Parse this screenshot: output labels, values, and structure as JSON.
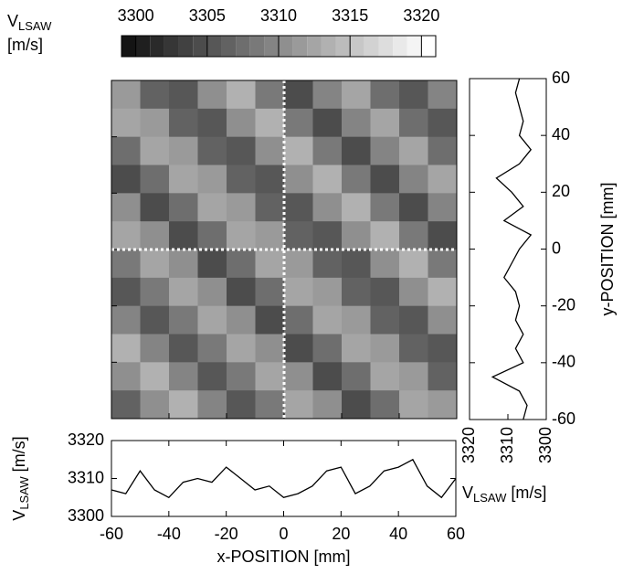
{
  "chart_data": [
    {
      "type": "colorbar",
      "label": "V",
      "label_sub": "LSAW",
      "label_unit": "[m/s]",
      "xlim": [
        3299,
        3321
      ],
      "xticks": [
        3300,
        3305,
        3310,
        3315,
        3320
      ],
      "levels": [
        3299,
        3300,
        3301,
        3302,
        3303,
        3304,
        3305,
        3306,
        3307,
        3308,
        3309,
        3310,
        3311,
        3312,
        3313,
        3314,
        3315,
        3316,
        3317,
        3318,
        3319,
        3320,
        3321
      ],
      "color_low": "#141414",
      "color_high": "#ffffff"
    },
    {
      "type": "heatmap",
      "x": [
        -55,
        -45,
        -35,
        -25,
        -15,
        -5,
        5,
        15,
        25,
        35,
        45,
        55
      ],
      "y": [
        55,
        45,
        35,
        25,
        15,
        5,
        -5,
        -15,
        -25,
        -35,
        -45,
        -55
      ],
      "values": [
        [
          3311,
          3306,
          3305,
          3310,
          3313,
          3308,
          3304,
          3309,
          3312,
          3307,
          3305,
          3309
        ],
        [
          3312,
          3311,
          3306,
          3305,
          3310,
          3313,
          3308,
          3304,
          3309,
          3312,
          3307,
          3305
        ],
        [
          3307,
          3312,
          3311,
          3306,
          3305,
          3310,
          3313,
          3308,
          3304,
          3309,
          3312,
          3307
        ],
        [
          3304,
          3307,
          3312,
          3311,
          3306,
          3305,
          3310,
          3313,
          3308,
          3304,
          3309,
          3312
        ],
        [
          3310,
          3304,
          3307,
          3312,
          3311,
          3306,
          3305,
          3310,
          3313,
          3308,
          3304,
          3309
        ],
        [
          3312,
          3310,
          3304,
          3307,
          3312,
          3311,
          3306,
          3305,
          3310,
          3313,
          3308,
          3304
        ],
        [
          3308,
          3312,
          3310,
          3304,
          3307,
          3312,
          3311,
          3306,
          3305,
          3310,
          3313,
          3308
        ],
        [
          3305,
          3308,
          3312,
          3310,
          3304,
          3307,
          3312,
          3311,
          3306,
          3305,
          3310,
          3313
        ],
        [
          3309,
          3305,
          3308,
          3312,
          3310,
          3304,
          3307,
          3312,
          3311,
          3306,
          3305,
          3310
        ],
        [
          3313,
          3309,
          3305,
          3308,
          3312,
          3310,
          3304,
          3307,
          3312,
          3311,
          3306,
          3305
        ],
        [
          3310,
          3313,
          3309,
          3305,
          3308,
          3312,
          3310,
          3304,
          3307,
          3312,
          3311,
          3306
        ],
        [
          3306,
          3310,
          3313,
          3309,
          3305,
          3308,
          3312,
          3310,
          3304,
          3307,
          3312,
          3311
        ]
      ],
      "xlim": [
        -60,
        60
      ],
      "ylim": [
        -60,
        60
      ],
      "xticks": [
        -40,
        -20,
        0,
        20,
        40
      ],
      "yticks": [
        -40,
        -20,
        0,
        20,
        40
      ],
      "crosshair_x": 0,
      "crosshair_y": 0
    },
    {
      "type": "vline",
      "y": [
        60,
        55,
        50,
        45,
        40,
        35,
        30,
        25,
        20,
        15,
        10,
        5,
        0,
        -5,
        -10,
        -15,
        -20,
        -25,
        -30,
        -35,
        -40,
        -45,
        -50,
        -55,
        -60
      ],
      "values": [
        3307,
        3308,
        3307,
        3306,
        3307,
        3304,
        3307,
        3313,
        3309,
        3306,
        3311,
        3304,
        3307,
        3309,
        3311,
        3308,
        3307,
        3308,
        3306,
        3308,
        3306,
        3314,
        3307,
        3305,
        3306
      ],
      "xlim": [
        3320,
        3300
      ],
      "ylim": [
        -60,
        60
      ],
      "xticks": [
        3320,
        3310,
        3300
      ],
      "yticks": [
        -60,
        -40,
        -20,
        0,
        20,
        40,
        60
      ],
      "xlabel": "V",
      "xlabel_sub": "LSAW",
      "xlabel_unit": "[m/s]",
      "ylabel": "y-POSITION [mm]",
      "color": "#000000"
    },
    {
      "type": "line",
      "x": [
        -60,
        -55,
        -50,
        -45,
        -40,
        -35,
        -30,
        -25,
        -20,
        -15,
        -10,
        -5,
        0,
        5,
        10,
        15,
        20,
        25,
        30,
        35,
        40,
        45,
        50,
        55,
        60
      ],
      "values": [
        3307,
        3306,
        3312,
        3307,
        3305,
        3309,
        3310,
        3309,
        3313,
        3310,
        3307,
        3308,
        3305,
        3306,
        3308,
        3312,
        3313,
        3306,
        3308,
        3312,
        3313,
        3315,
        3308,
        3305,
        3310
      ],
      "xlim": [
        -60,
        60
      ],
      "ylim": [
        3300,
        3320
      ],
      "xticks": [
        -60,
        -40,
        -20,
        0,
        20,
        40,
        60
      ],
      "yticks": [
        3300,
        3310,
        3320
      ],
      "xlabel": "x-POSITION [mm]",
      "ylabel": "V",
      "ylabel_sub": "LSAW",
      "ylabel_unit": "[m/s]",
      "color": "#000000"
    }
  ]
}
